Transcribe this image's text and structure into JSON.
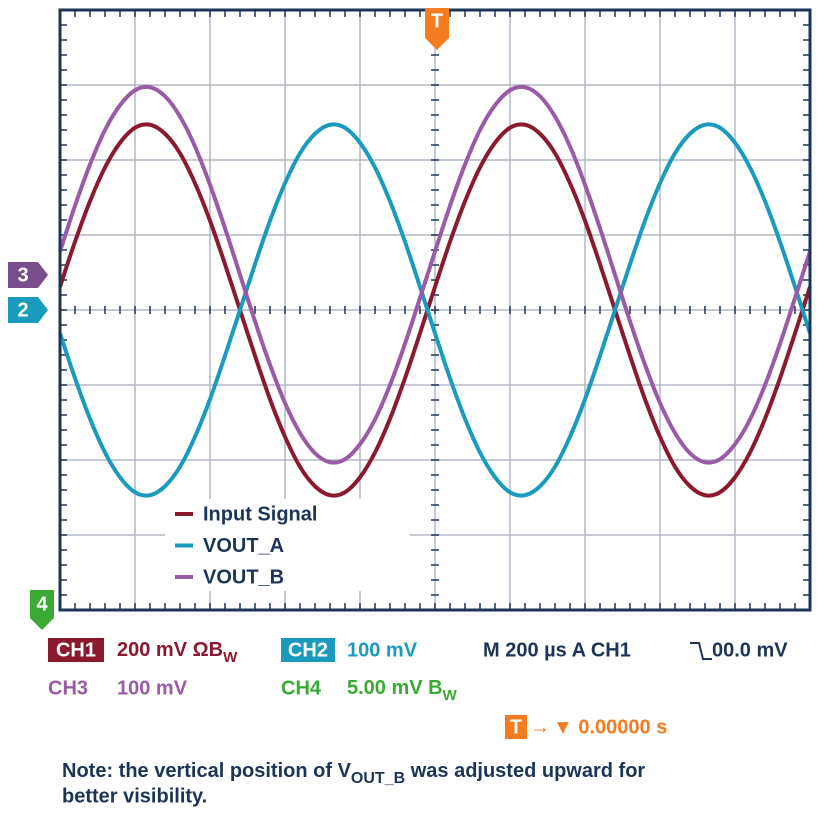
{
  "chart_data": {
    "type": "line",
    "x": [
      0,
      0.2,
      0.4,
      0.6,
      0.8,
      1,
      1.2,
      1.4,
      1.6,
      1.8,
      2,
      2.2,
      2.4,
      2.6,
      2.8,
      3,
      3.2,
      3.4,
      3.6,
      3.8,
      4,
      4.2,
      4.4,
      4.6,
      4.8,
      5,
      5.2,
      5.4,
      5.6,
      5.8,
      6,
      6.2,
      6.4,
      6.6,
      6.8,
      7,
      7.2,
      7.4,
      7.6,
      7.8,
      8,
      8.2,
      8.4,
      8.6,
      8.8,
      9,
      9.2,
      9.4,
      9.6,
      9.8,
      10
    ],
    "xlim": [
      0,
      10
    ],
    "ylim": [
      -4,
      4
    ],
    "xticks": [
      0,
      1,
      2,
      3,
      4,
      5,
      6,
      7,
      8,
      9,
      10
    ],
    "yticks": [
      -4,
      -3,
      -2,
      -1,
      0,
      1,
      2,
      3,
      4
    ],
    "grid": true,
    "legend": "lower left",
    "series": [
      {
        "name": "Input Signal",
        "color": "#8b1a2e",
        "values": [
          0.31,
          0.91,
          1.45,
          1.9,
          2.23,
          2.43,
          2.47,
          2.35,
          2.09,
          1.69,
          1.19,
          0.61,
          0,
          -0.61,
          -1.19,
          -1.69,
          -2.09,
          -2.35,
          -2.47,
          -2.43,
          -2.23,
          -1.9,
          -1.45,
          -0.91,
          -0.31,
          0.31,
          0.91,
          1.45,
          1.9,
          2.23,
          2.43,
          2.47,
          2.35,
          2.09,
          1.69,
          1.19,
          0.61,
          0,
          -0.61,
          -1.19,
          -1.69,
          -2.09,
          -2.35,
          -2.47,
          -2.43,
          -2.23,
          -1.9,
          -1.45,
          -0.91,
          -0.31,
          0.31
        ]
      },
      {
        "name": "VOUT_A",
        "color": "#1a9bbd",
        "values": [
          -0.31,
          -0.91,
          -1.45,
          -1.9,
          -2.23,
          -2.43,
          -2.47,
          -2.35,
          -2.09,
          -1.69,
          -1.19,
          -0.61,
          0,
          0.61,
          1.19,
          1.69,
          2.09,
          2.35,
          2.47,
          2.43,
          2.23,
          1.9,
          1.45,
          0.91,
          0.31,
          -0.31,
          -0.91,
          -1.45,
          -1.9,
          -2.23,
          -2.43,
          -2.47,
          -2.35,
          -2.09,
          -1.69,
          -1.19,
          -0.61,
          0,
          0.61,
          1.19,
          1.69,
          2.09,
          2.35,
          2.47,
          2.43,
          2.23,
          1.9,
          1.45,
          0.91,
          0.31,
          -0.31
        ]
      },
      {
        "name": "VOUT_B",
        "color": "#9a5ba6",
        "values": [
          0.78,
          1.39,
          1.94,
          2.4,
          2.73,
          2.93,
          2.97,
          2.85,
          2.58,
          2.18,
          1.67,
          1.09,
          0.47,
          -0.15,
          -0.73,
          -1.24,
          -1.64,
          -1.91,
          -2.03,
          -1.99,
          -1.79,
          -1.46,
          -1.0,
          -0.45,
          0.16,
          0.78,
          1.39,
          1.94,
          2.4,
          2.73,
          2.93,
          2.97,
          2.85,
          2.58,
          2.18,
          1.67,
          1.09,
          0.47,
          -0.15,
          -0.73,
          -1.24,
          -1.64,
          -1.91,
          -2.03,
          -1.99,
          -1.79,
          -1.46,
          -1.0,
          -0.45,
          0.16,
          0.78
        ]
      }
    ]
  },
  "markers": {
    "trigger": "T",
    "ch3": "3",
    "ch2": "2",
    "ch4": "4"
  },
  "status": {
    "ch1": {
      "label": "CH1",
      "scale": "200 mV ΩB",
      "sub": "W"
    },
    "ch2": {
      "label": "CH2",
      "scale": "100 mV"
    },
    "timebase": "M 200 µs A  CH1",
    "trigger_level": "00.0 mV",
    "ch3": {
      "label": "CH3",
      "scale": "100 mV"
    },
    "ch4": {
      "label": "CH4",
      "scale": "5.00 mV B",
      "sub": "W"
    },
    "trigger_pos": {
      "label": "T",
      "arrow": "→",
      "value": "▼ 0.00000 s"
    }
  },
  "note": {
    "before": "Note: the vertical position of V",
    "sub": "OUT_B",
    "after": " was adjusted upward for",
    "line2": "better visibility."
  }
}
